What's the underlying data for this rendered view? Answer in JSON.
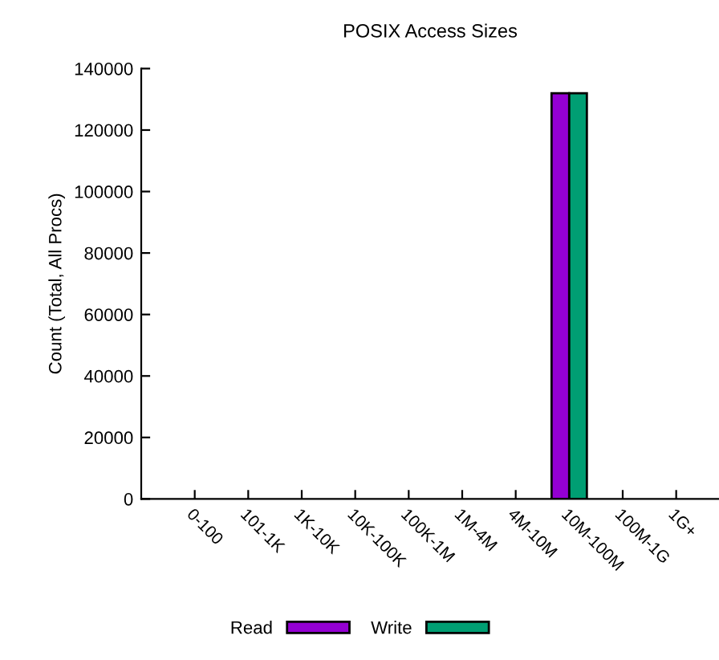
{
  "chart_data": {
    "type": "bar",
    "title": "POSIX Access Sizes",
    "ylabel": "Count (Total, All Procs)",
    "categories": [
      "0-100",
      "101-1K",
      "1K-10K",
      "10K-100K",
      "100K-1M",
      "1M-4M",
      "4M-10M",
      "10M-100M",
      "100M-1G",
      "1G+"
    ],
    "series": [
      {
        "name": "Read",
        "color": "#9400d3",
        "values": [
          0,
          0,
          0,
          0,
          0,
          0,
          0,
          132000,
          0,
          0
        ]
      },
      {
        "name": "Write",
        "color": "#009e73",
        "values": [
          0,
          0,
          0,
          0,
          0,
          0,
          0,
          132000,
          0,
          0
        ]
      }
    ],
    "ylim": [
      0,
      140000
    ],
    "yticks": [
      0,
      20000,
      40000,
      60000,
      80000,
      100000,
      120000,
      140000
    ],
    "grid": false,
    "legend": "bottom"
  }
}
